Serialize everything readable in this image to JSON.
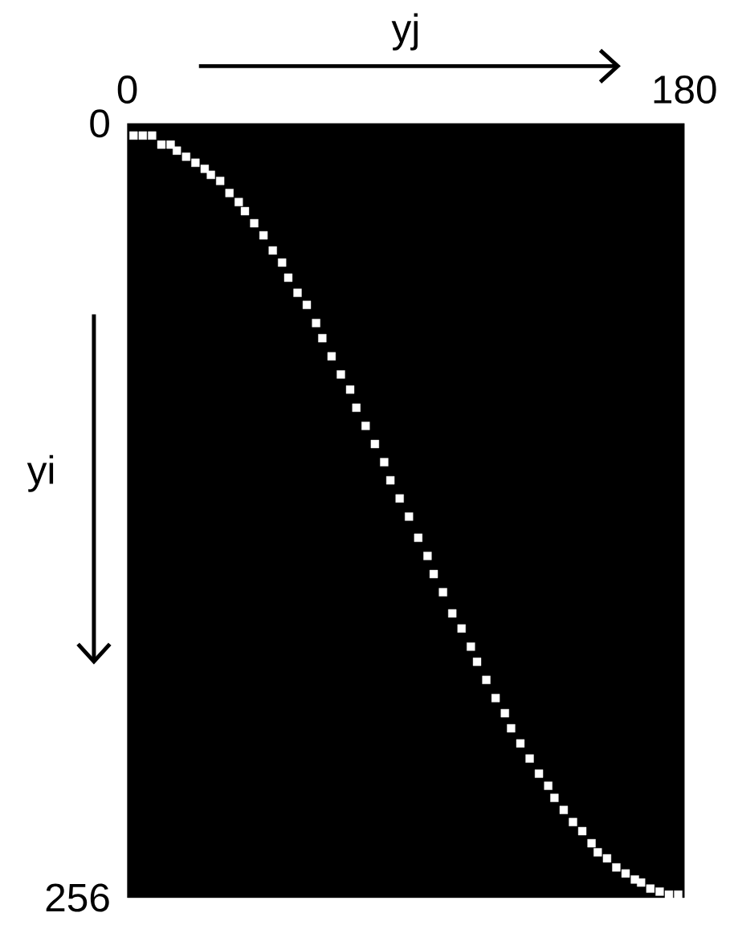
{
  "chart_data": {
    "type": "scatter",
    "xlabel": "yj",
    "ylabel": "yi",
    "x": [
      2,
      5,
      8,
      11,
      14,
      16,
      19,
      22,
      25,
      27,
      30,
      33,
      36,
      38,
      41,
      44,
      47,
      50,
      52,
      55,
      58,
      61,
      63,
      66,
      69,
      72,
      74,
      77,
      80,
      83,
      85,
      88,
      91,
      94,
      97,
      99,
      102,
      105,
      108,
      111,
      113,
      116,
      119,
      122,
      124,
      127,
      130,
      133,
      136,
      138,
      141,
      144,
      147,
      150,
      152,
      155,
      158,
      161,
      164,
      166,
      169,
      172,
      175,
      178
    ],
    "values": [
      4,
      4,
      4,
      7,
      7,
      9,
      11,
      13,
      15,
      17,
      19,
      23,
      26,
      29,
      33,
      37,
      42,
      46,
      51,
      56,
      60,
      66,
      71,
      77,
      83,
      88,
      94,
      100,
      106,
      112,
      118,
      124,
      130,
      137,
      143,
      149,
      155,
      162,
      167,
      173,
      178,
      184,
      190,
      195,
      200,
      205,
      210,
      215,
      219,
      223,
      227,
      231,
      234,
      238,
      241,
      243,
      246,
      248,
      250,
      251,
      253,
      254,
      255,
      255
    ],
    "color": "#ffffff",
    "marker": "square",
    "xlim": [
      0,
      180
    ],
    "ylim": [
      256,
      0
    ],
    "xticks": [
      0,
      180
    ],
    "yticks": [
      0,
      256
    ]
  }
}
